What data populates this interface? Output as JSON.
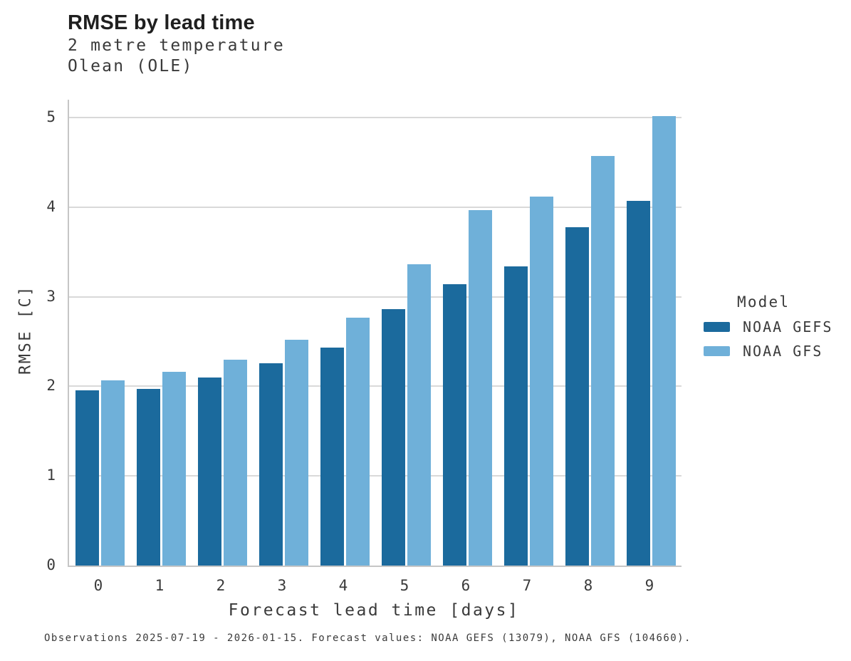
{
  "header": {
    "title": "RMSE by lead time",
    "subtitle_line1": "2 metre temperature",
    "subtitle_line2": "Olean (OLE)"
  },
  "chart_data": {
    "type": "bar",
    "title": "RMSE by lead time",
    "subtitle": [
      "2 metre temperature",
      "Olean (OLE)"
    ],
    "categories": [
      "0",
      "1",
      "2",
      "3",
      "4",
      "5",
      "6",
      "7",
      "8",
      "9"
    ],
    "series": [
      {
        "name": "NOAA GEFS",
        "color": "#1b6a9d",
        "values": [
          1.96,
          1.97,
          2.1,
          2.26,
          2.43,
          2.86,
          3.14,
          3.34,
          3.78,
          4.07
        ]
      },
      {
        "name": "NOAA GFS",
        "color": "#6fb0d9",
        "values": [
          2.07,
          2.16,
          2.3,
          2.52,
          2.77,
          3.36,
          3.97,
          4.12,
          4.57,
          5.02
        ]
      }
    ],
    "xlabel": "Forecast lead time [days]",
    "ylabel": "RMSE [C]",
    "ylim": [
      0,
      5.2
    ],
    "yticks": [
      0,
      1,
      2,
      3,
      4,
      5
    ],
    "grid": true,
    "legend": {
      "title": "Model",
      "position": "right"
    }
  },
  "footer": {
    "note": "Observations 2025-07-19 - 2026-01-15. Forecast values: NOAA GEFS (13079), NOAA GFS (104660)."
  },
  "colors": {
    "grid": "#d9d9d9",
    "axis": "#c6c6c6",
    "title_text": "#1f1f1f",
    "text": "#3a3a3a"
  }
}
